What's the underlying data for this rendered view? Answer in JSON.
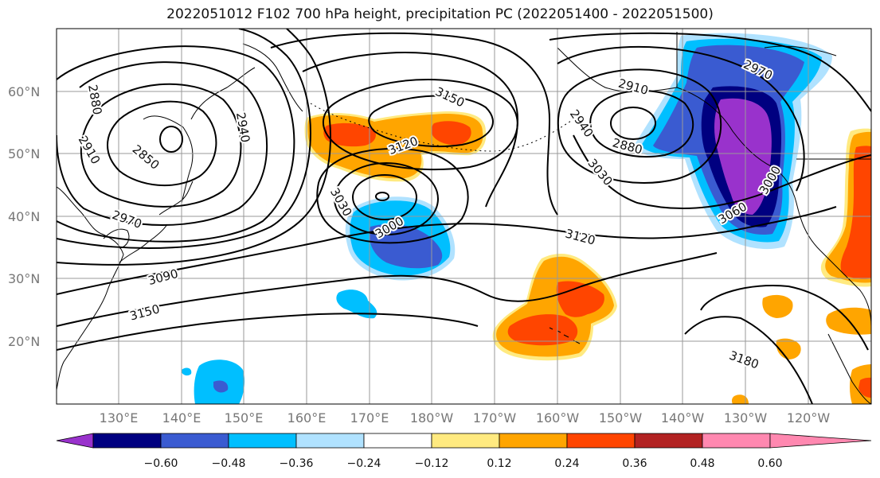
{
  "title": "2022051012 F102 700 hPa height, precipitation PC (2022051400 - 2022051500)",
  "latitude_labels": [
    "60°N",
    "50°N",
    "40°N",
    "30°N",
    "20°N"
  ],
  "longitude_labels": [
    "130°E",
    "140°E",
    "150°E",
    "160°E",
    "170°E",
    "180°W",
    "170°W",
    "160°W",
    "150°W",
    "140°W",
    "130°W",
    "120°W"
  ],
  "contour_labels": [
    "2880",
    "2910",
    "2850",
    "2940",
    "2970",
    "3090",
    "3150",
    "3150",
    "3120",
    "3030",
    "3000",
    "3120",
    "2910",
    "2940",
    "2880",
    "3030",
    "2970",
    "3000",
    "3060",
    "3180"
  ],
  "colorbar": {
    "tick_labels": [
      "−0.60",
      "−0.48",
      "−0.36",
      "−0.24",
      "−0.12",
      "0.12",
      "0.24",
      "0.36",
      "0.48",
      "0.60"
    ],
    "colors": [
      "#9932cc",
      "#000080",
      "#3a5bd1",
      "#00bfff",
      "#b0e2ff",
      "#ffffff",
      "#ffea80",
      "#ffa500",
      "#ff4500",
      "#b22222",
      "#ff88b0"
    ]
  },
  "colors": {
    "strong_negative": "#9932cc",
    "very_negative": "#000080",
    "negative": "#3a5bd1",
    "moderate_negative": "#00bfff",
    "weak_negative": "#b0e2ff",
    "weak_positive": "#ffea80",
    "positive": "#ffa500",
    "strong_positive": "#ff4500"
  }
}
